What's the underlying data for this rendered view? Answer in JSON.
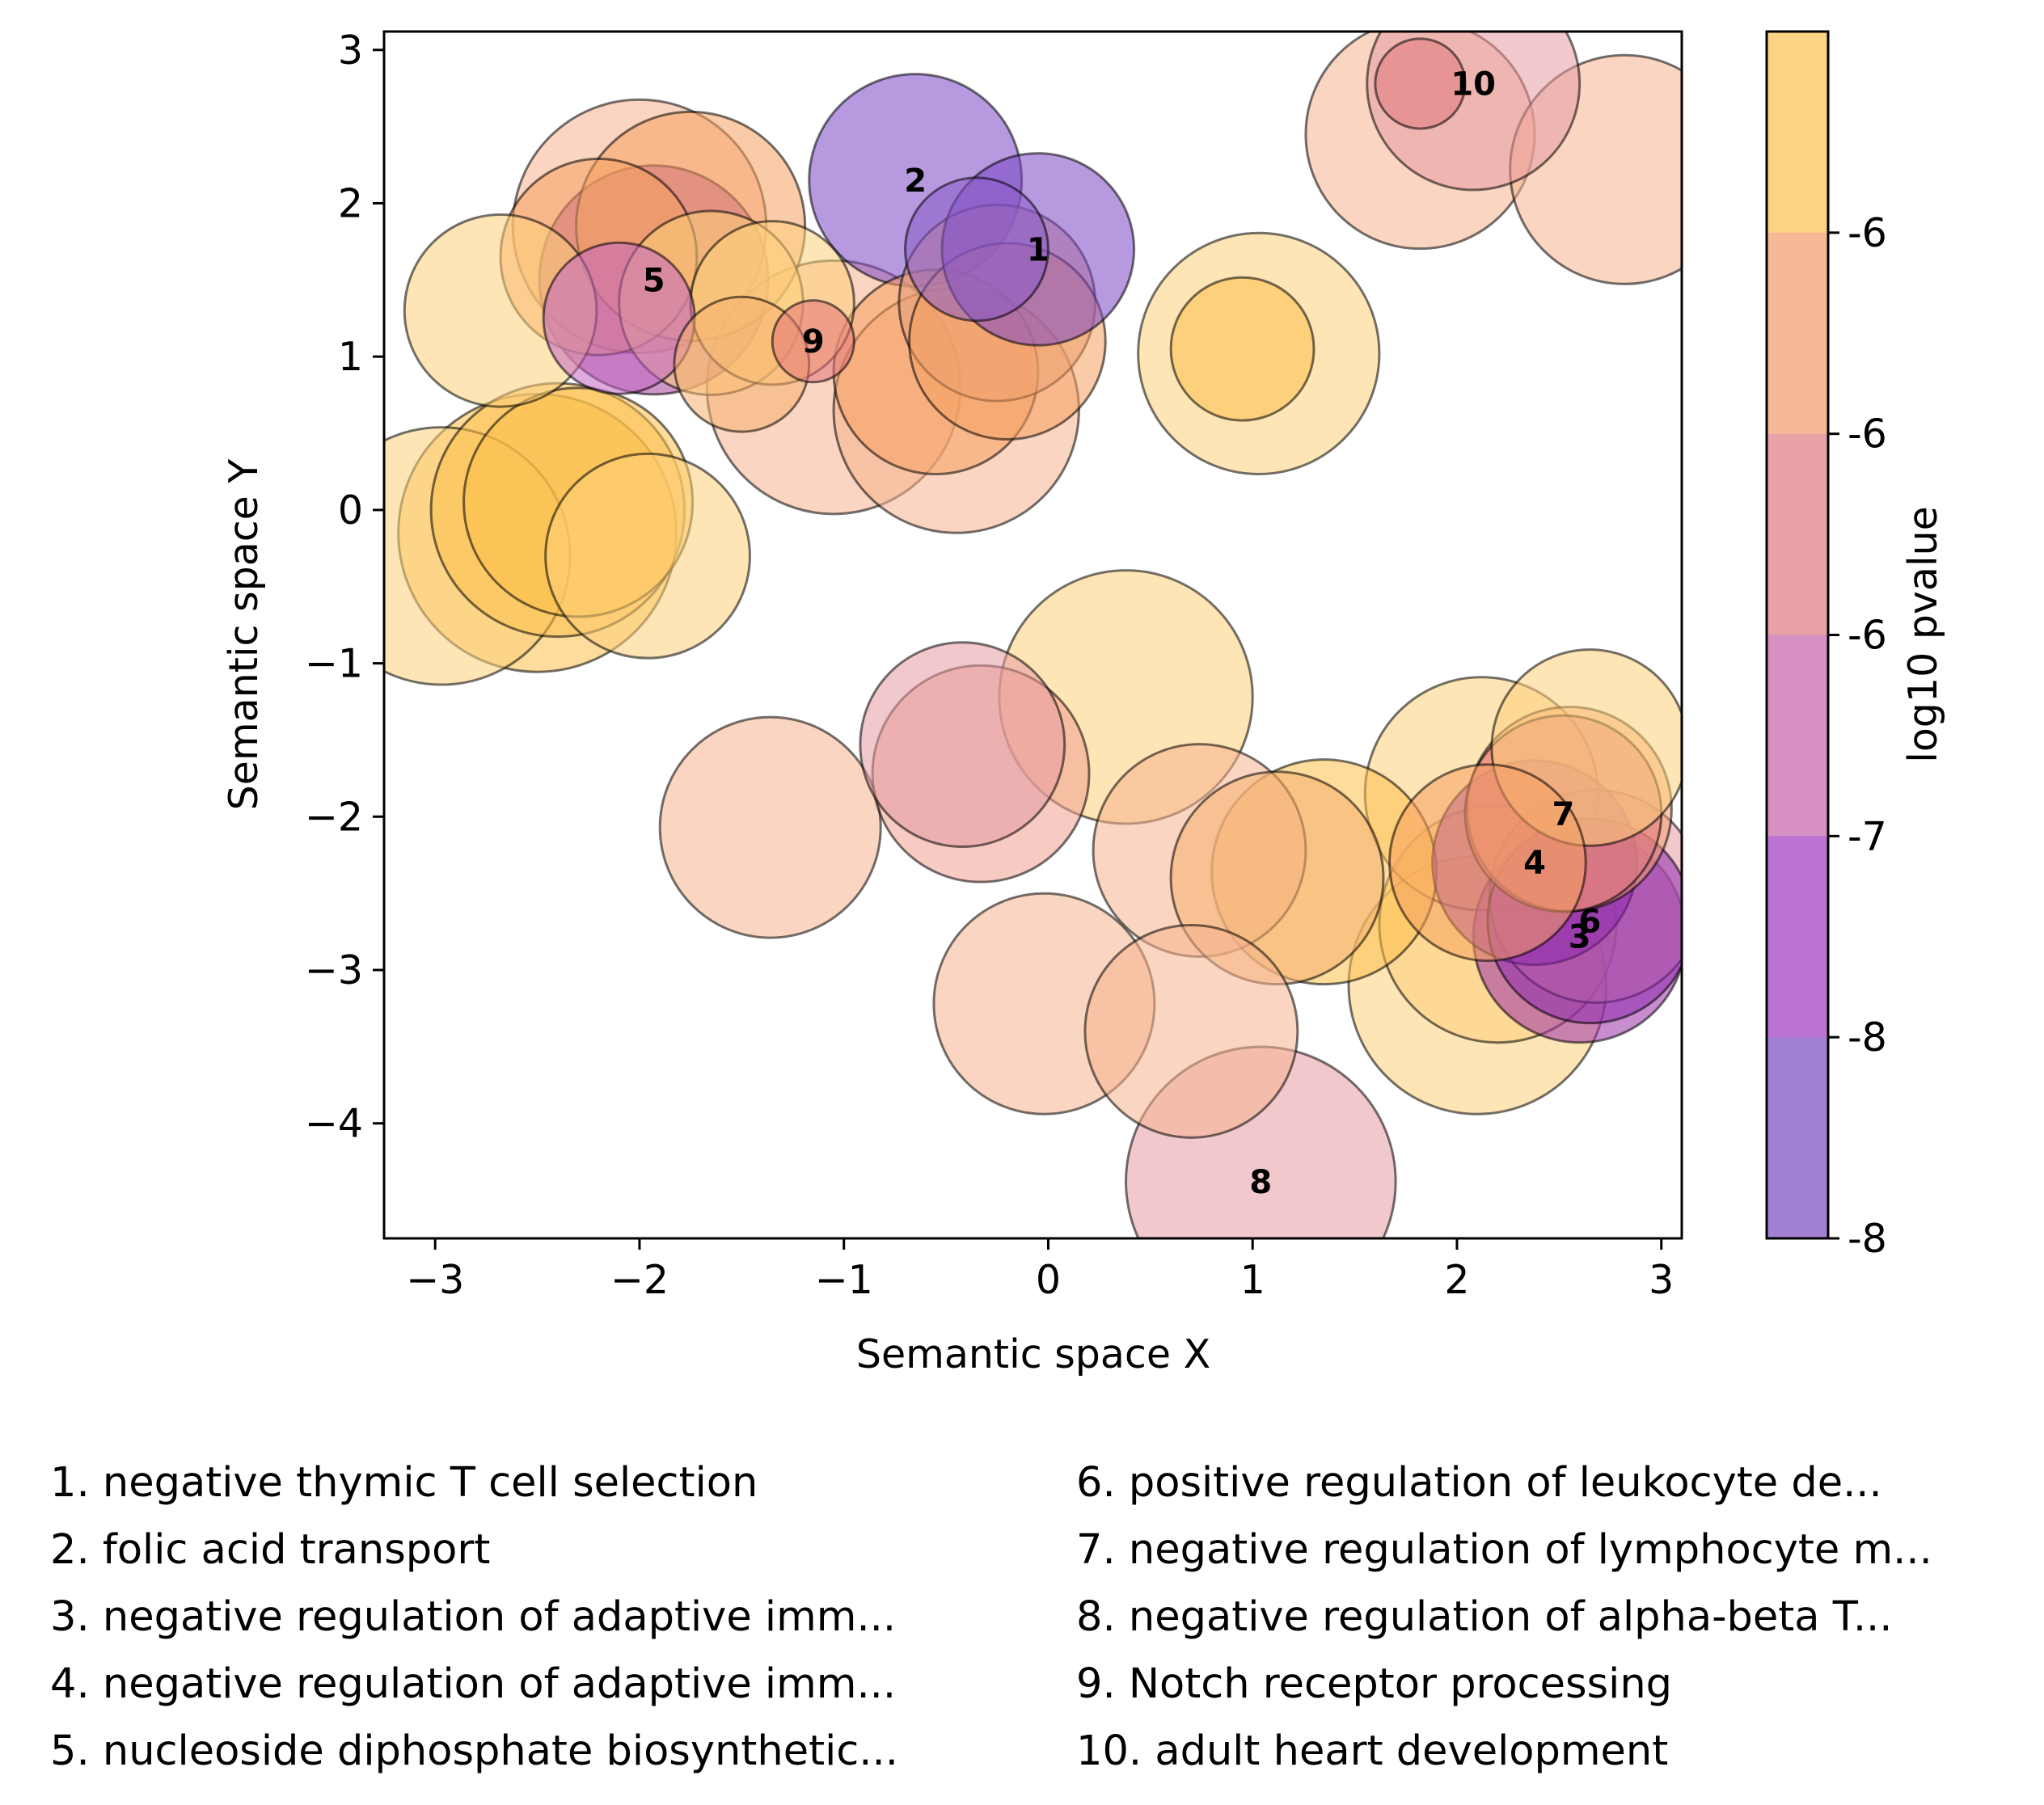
{
  "chart_data": {
    "type": "scatter",
    "xlabel": "Semantic space X",
    "ylabel": "Semantic space Y",
    "xlim": [
      -3.25,
      3.1
    ],
    "ylim": [
      -4.75,
      3.12
    ],
    "xticks": [
      -3,
      -2,
      -1,
      0,
      1,
      2,
      3
    ],
    "xtick_labels": [
      "−3",
      "−2",
      "−1",
      "0",
      "1",
      "2",
      "3"
    ],
    "yticks": [
      3,
      2,
      1,
      0,
      -1,
      -2,
      -3,
      -4
    ],
    "ytick_labels": [
      "3",
      "2",
      "1",
      "0",
      "−1",
      "−2",
      "−3",
      "−4"
    ],
    "grid": false,
    "colorbar": {
      "label": "log10 pvalue",
      "bands": [
        "#fdd483",
        "#f7b995",
        "#e9a2aa",
        "#d690c2",
        "#bc73d2",
        "#a280d3"
      ],
      "tick_labels": [
        "-6",
        "-6",
        "-6",
        "-7",
        "-8",
        "-8"
      ]
    },
    "bubble_size_unit": "radius in x-axis units",
    "points": [
      {
        "x": -0.05,
        "y": 1.7,
        "r": 0.47,
        "color": "#7c45c4",
        "label": "1"
      },
      {
        "x": -0.65,
        "y": 2.15,
        "r": 0.52,
        "color": "#7c45c4",
        "label": "2"
      },
      {
        "x": 2.6,
        "y": -2.78,
        "r": 0.52,
        "color": "#9b2fa8",
        "label": "3"
      },
      {
        "x": 2.38,
        "y": -2.3,
        "r": 0.5,
        "color": "#8e2ab0",
        "label": "4"
      },
      {
        "x": -1.93,
        "y": 1.5,
        "r": 0.56,
        "color": "#a83c9b",
        "label": "5"
      },
      {
        "x": 2.65,
        "y": -2.68,
        "r": 0.5,
        "color": "#8e2ab0",
        "label": "6"
      },
      {
        "x": 2.52,
        "y": -1.98,
        "r": 0.48,
        "color": "#e07a7e",
        "label": "7"
      },
      {
        "x": 1.04,
        "y": -4.38,
        "r": 0.66,
        "color": "#e59aa3",
        "label": "8"
      },
      {
        "x": -1.15,
        "y": 1.1,
        "r": 0.2,
        "color": "#e4747a",
        "label": "9"
      },
      {
        "x": 2.08,
        "y": 2.78,
        "r": 0.52,
        "color": "#e59aa3",
        "label": "10"
      },
      {
        "x": 1.82,
        "y": 2.78,
        "r": 0.22,
        "color": "#e07a7e",
        "label": ""
      },
      {
        "x": 1.82,
        "y": 2.45,
        "r": 0.56,
        "color": "#f6b28e",
        "label": ""
      },
      {
        "x": 2.82,
        "y": 2.22,
        "r": 0.56,
        "color": "#f6b28e",
        "label": ""
      },
      {
        "x": 1.03,
        "y": 1.02,
        "r": 0.59,
        "color": "#fdd07a",
        "label": ""
      },
      {
        "x": 0.95,
        "y": 1.05,
        "r": 0.35,
        "color": "#fbc04a",
        "label": ""
      },
      {
        "x": -2.0,
        "y": 1.85,
        "r": 0.62,
        "color": "#f6b28e",
        "label": ""
      },
      {
        "x": -1.75,
        "y": 1.85,
        "r": 0.56,
        "color": "#f5a060",
        "label": ""
      },
      {
        "x": -2.2,
        "y": 1.65,
        "r": 0.48,
        "color": "#f5a060",
        "label": ""
      },
      {
        "x": -2.68,
        "y": 1.3,
        "r": 0.47,
        "color": "#fdd07a",
        "label": ""
      },
      {
        "x": -2.1,
        "y": 1.25,
        "r": 0.37,
        "color": "#c266c2",
        "label": ""
      },
      {
        "x": -1.35,
        "y": 1.35,
        "r": 0.4,
        "color": "#fdd07a",
        "label": ""
      },
      {
        "x": -1.5,
        "y": 0.95,
        "r": 0.33,
        "color": "#f5b070",
        "label": ""
      },
      {
        "x": -1.65,
        "y": 1.35,
        "r": 0.45,
        "color": "#fdd07a",
        "label": ""
      },
      {
        "x": -1.05,
        "y": 0.8,
        "r": 0.62,
        "color": "#f6b28e",
        "label": ""
      },
      {
        "x": -0.45,
        "y": 0.65,
        "r": 0.6,
        "color": "#f6b28e",
        "label": ""
      },
      {
        "x": -0.25,
        "y": 1.35,
        "r": 0.48,
        "color": "#e4a080",
        "label": ""
      },
      {
        "x": -0.2,
        "y": 1.1,
        "r": 0.48,
        "color": "#f5a060",
        "label": ""
      },
      {
        "x": -0.35,
        "y": 1.7,
        "r": 0.35,
        "color": "#8a5bc8",
        "label": ""
      },
      {
        "x": -0.55,
        "y": 0.9,
        "r": 0.5,
        "color": "#f5a060",
        "label": ""
      },
      {
        "x": -2.97,
        "y": -0.3,
        "r": 0.63,
        "color": "#fdd07a",
        "label": ""
      },
      {
        "x": -2.5,
        "y": -0.15,
        "r": 0.68,
        "color": "#fbc04a",
        "label": ""
      },
      {
        "x": -2.4,
        "y": 0.0,
        "r": 0.62,
        "color": "#fbc04a",
        "label": ""
      },
      {
        "x": -2.3,
        "y": 0.05,
        "r": 0.56,
        "color": "#fbc04a",
        "label": ""
      },
      {
        "x": -1.96,
        "y": -0.3,
        "r": 0.5,
        "color": "#fdd07a",
        "label": ""
      },
      {
        "x": 0.38,
        "y": -1.22,
        "r": 0.62,
        "color": "#fdd07a",
        "label": ""
      },
      {
        "x": -0.42,
        "y": -1.53,
        "r": 0.5,
        "color": "#e59aa3",
        "label": ""
      },
      {
        "x": -0.33,
        "y": -1.72,
        "r": 0.53,
        "color": "#f0a090",
        "label": ""
      },
      {
        "x": -1.36,
        "y": -2.07,
        "r": 0.54,
        "color": "#f6b28e",
        "label": ""
      },
      {
        "x": 0.74,
        "y": -2.22,
        "r": 0.52,
        "color": "#f6b28e",
        "label": ""
      },
      {
        "x": 1.35,
        "y": -2.36,
        "r": 0.55,
        "color": "#fbc04a",
        "label": ""
      },
      {
        "x": 1.12,
        "y": -2.4,
        "r": 0.52,
        "color": "#f5b070",
        "label": ""
      },
      {
        "x": -0.02,
        "y": -3.22,
        "r": 0.54,
        "color": "#f6b28e",
        "label": ""
      },
      {
        "x": 0.7,
        "y": -3.4,
        "r": 0.52,
        "color": "#f6b28e",
        "label": ""
      },
      {
        "x": 2.12,
        "y": -1.85,
        "r": 0.57,
        "color": "#fdd07a",
        "label": ""
      },
      {
        "x": 2.65,
        "y": -1.55,
        "r": 0.48,
        "color": "#fdd07a",
        "label": ""
      },
      {
        "x": 2.55,
        "y": -1.95,
        "r": 0.5,
        "color": "#f5a070",
        "label": ""
      },
      {
        "x": 2.2,
        "y": -2.7,
        "r": 0.58,
        "color": "#fdd07a",
        "label": ""
      },
      {
        "x": 2.1,
        "y": -3.1,
        "r": 0.63,
        "color": "#fdd07a",
        "label": ""
      },
      {
        "x": 2.15,
        "y": -2.3,
        "r": 0.48,
        "color": "#f5a060",
        "label": ""
      },
      {
        "x": 2.68,
        "y": -2.52,
        "r": 0.52,
        "color": "#e59aa3",
        "label": ""
      }
    ]
  },
  "legend": {
    "left": [
      "1. negative thymic T cell selection",
      "2. folic acid transport",
      "3. negative regulation of adaptive imm...",
      "4. negative regulation of adaptive imm...",
      "5. nucleoside diphosphate biosynthetic..."
    ],
    "right": [
      "6. positive regulation of leukocyte de...",
      "7. negative regulation of lymphocyte m...",
      "8. negative regulation of alpha-beta T...",
      "9. Notch receptor processing",
      "10. adult heart development"
    ]
  }
}
